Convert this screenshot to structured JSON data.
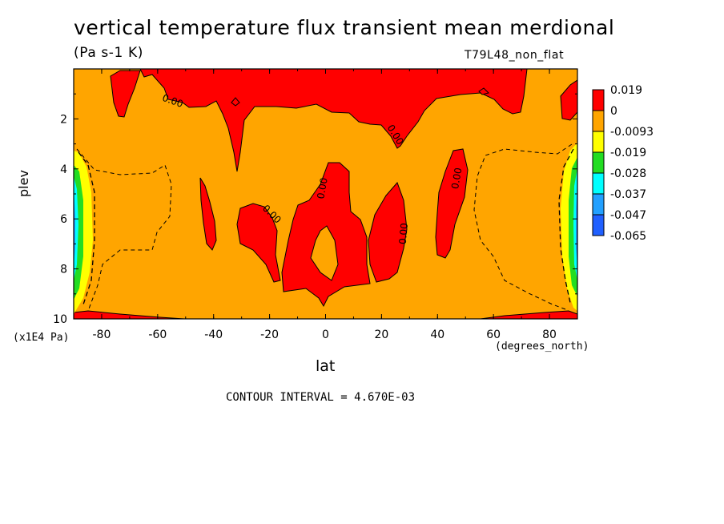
{
  "chart_data": {
    "type": "contour",
    "title": "vertical temperature flux transient mean merdional",
    "units": "(Pa s-1 K)",
    "run_label": "T79L48_non_flat",
    "xlabel": "lat",
    "x_units": "(degrees_north)",
    "ylabel": "plev",
    "y_multiplier": "(x1E4 Pa)",
    "xlim": [
      -90,
      90
    ],
    "ylim": [
      10,
      0
    ],
    "x_ticks": [
      "-80",
      "-60",
      "-40",
      "-20",
      "0",
      "20",
      "40",
      "60",
      "80"
    ],
    "y_ticks": [
      "2",
      "4",
      "6",
      "8",
      "10"
    ],
    "contour_interval": "CONTOUR INTERVAL = 4.670E-03",
    "contour_labels": [
      "0.00",
      "0.00",
      "0.00",
      "0.00",
      "0.00",
      "0.00"
    ],
    "legend": {
      "levels": [
        "0.019",
        "0",
        "-0.0093",
        "-0.019",
        "-0.028",
        "-0.037",
        "-0.047",
        "-0.065"
      ],
      "colors": [
        "#ff0000",
        "#ffa500",
        "#ffff00",
        "#22dd22",
        "#00ffff",
        "#22a0ff",
        "#2060ff"
      ]
    },
    "background_color": "#ffa500",
    "grid": false
  }
}
